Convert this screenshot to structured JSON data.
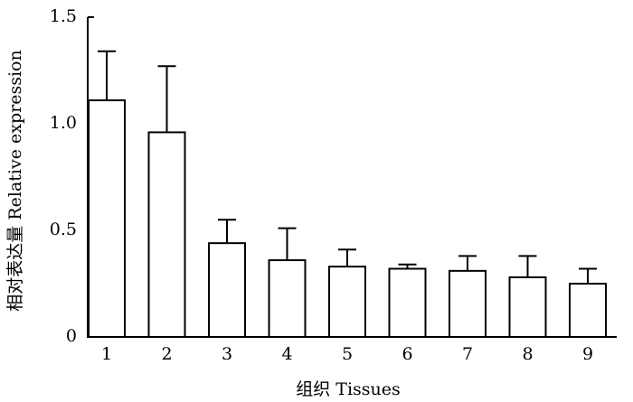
{
  "chart_data": {
    "type": "bar",
    "ylabel": "相对表达量 Relative expression",
    "xlabel": "组织 Tissues",
    "categories": [
      "1",
      "2",
      "3",
      "4",
      "5",
      "6",
      "7",
      "8",
      "9"
    ],
    "values": [
      1.11,
      0.96,
      0.44,
      0.36,
      0.33,
      0.32,
      0.31,
      0.28,
      0.25
    ],
    "errors": [
      0.23,
      0.31,
      0.11,
      0.15,
      0.08,
      0.02,
      0.07,
      0.1,
      0.07
    ],
    "color": "#ffffff",
    "ylim": [
      0,
      1.5
    ],
    "yticks": [
      0,
      0.5,
      {
        "value": 1,
        "label": "1.0"
      },
      1.5
    ],
    "grid": false
  }
}
